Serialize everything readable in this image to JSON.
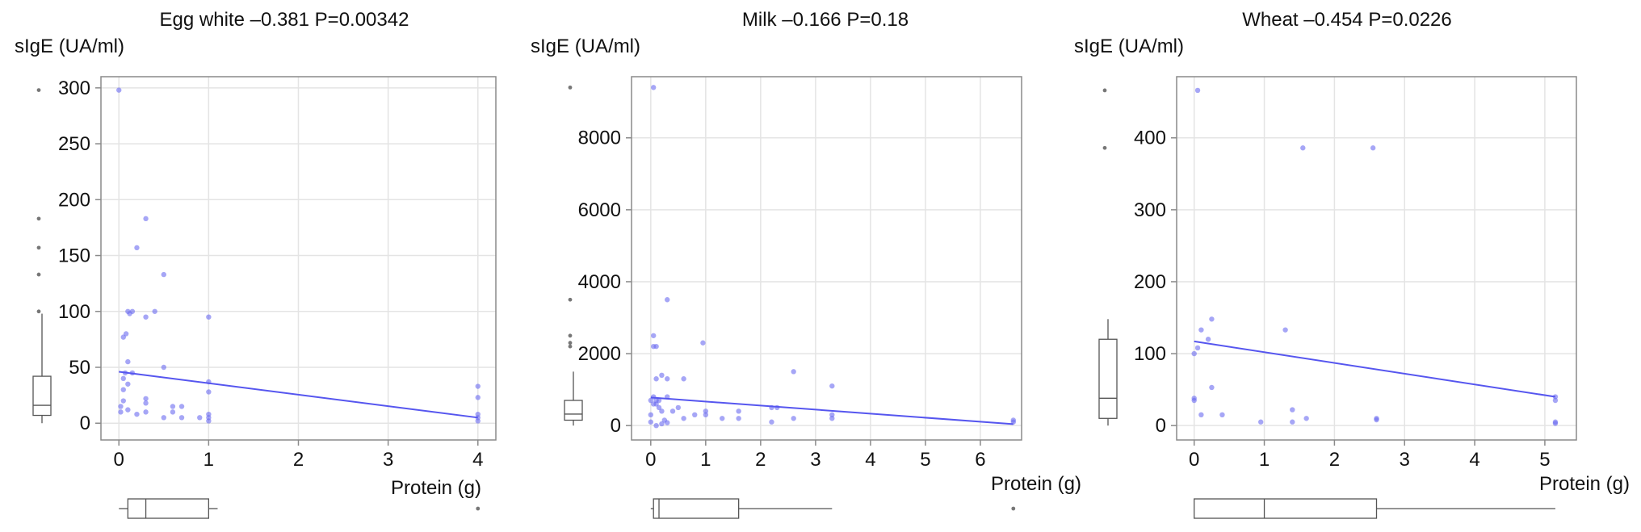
{
  "figure": {
    "colors": {
      "point": "#6b6bf0",
      "line": "#5656ef",
      "grid": "#e4e4e4",
      "frame": "#8a8a8a",
      "boxplot": "#555555"
    }
  },
  "chart_data": [
    {
      "type": "scatter",
      "title": "Egg white –0.381 P=0.00342",
      "ylabel": "sIgE (UA/ml)",
      "xlabel": "Protein (g)",
      "xlim": [
        -0.2,
        4.2
      ],
      "ylim": [
        -15,
        310
      ],
      "xticks": [
        0,
        1,
        2,
        3,
        4
      ],
      "yticks": [
        0,
        50,
        100,
        150,
        200,
        250,
        300
      ],
      "grid": true,
      "x": [
        0.0,
        0.02,
        0.05,
        0.05,
        0.07,
        0.08,
        0.1,
        0.1,
        0.12,
        0.15,
        0.2,
        0.3,
        0.3,
        0.3,
        0.4,
        0.5,
        0.5,
        0.6,
        0.6,
        0.7,
        0.7,
        0.9,
        1.0,
        1.0,
        1.0,
        1.0,
        1.0,
        1.0,
        0.05,
        0.02,
        0.1,
        0.3,
        4.0,
        4.0,
        4.0,
        4.0,
        4.0,
        0.2,
        0.5,
        0.1,
        0.05,
        0.3,
        0.15
      ],
      "y": [
        298,
        10,
        77,
        40,
        45,
        80,
        100,
        55,
        98,
        100,
        157,
        183,
        95,
        10,
        100,
        133,
        50,
        10,
        15,
        5,
        15,
        5,
        95,
        37,
        8,
        2,
        28,
        5,
        20,
        15,
        35,
        22,
        33,
        23,
        8,
        5,
        2,
        8,
        5,
        12,
        30,
        18,
        45
      ],
      "regression": {
        "x": [
          0,
          4
        ],
        "y": [
          46,
          5
        ]
      },
      "y_boxplot": {
        "min": 0,
        "q1": 7,
        "median": 16,
        "q3": 42,
        "max": 98,
        "outliers": [
          298,
          183,
          157,
          133,
          100
        ]
      },
      "x_boxplot": {
        "min": 0.0,
        "q1": 0.1,
        "median": 0.3,
        "q3": 1.0,
        "max": 1.1,
        "outliers": [
          4.0
        ]
      }
    },
    {
      "type": "scatter",
      "title": "Milk –0.166 P=0.18",
      "ylabel": "sIgE (UA/ml)",
      "xlabel": "Protein (g)",
      "xlim": [
        -0.35,
        6.75
      ],
      "ylim": [
        -400,
        9700
      ],
      "xticks": [
        0,
        1,
        2,
        3,
        4,
        5,
        6
      ],
      "yticks": [
        0,
        2000,
        4000,
        6000,
        8000
      ],
      "grid": true,
      "x": [
        0.05,
        0.05,
        0.05,
        0.1,
        0.3,
        0.95,
        0.1,
        0.2,
        0.3,
        0.6,
        0.0,
        0.05,
        0.1,
        0.15,
        0.2,
        0.3,
        0.4,
        0.5,
        0.6,
        0.8,
        1.0,
        1.0,
        1.3,
        1.6,
        1.6,
        2.2,
        2.2,
        2.3,
        2.6,
        2.6,
        3.3,
        3.3,
        3.3,
        6.6,
        6.6,
        0.0,
        0.1,
        0.2,
        0.3,
        0.05,
        0.15,
        0.25,
        0.0,
        0.1
      ],
      "y": [
        9400,
        2500,
        2200,
        2200,
        3500,
        2300,
        1300,
        1400,
        1300,
        1300,
        700,
        800,
        600,
        700,
        400,
        800,
        400,
        500,
        200,
        300,
        300,
        400,
        200,
        400,
        200,
        500,
        100,
        500,
        1500,
        200,
        1100,
        300,
        200,
        150,
        100,
        100,
        0,
        50,
        80,
        600,
        500,
        150,
        300,
        700
      ],
      "regression": {
        "x": [
          0,
          6.6
        ],
        "y": [
          780,
          40
        ]
      },
      "y_boxplot": {
        "min": 0,
        "q1": 150,
        "median": 320,
        "q3": 700,
        "max": 1500,
        "outliers": [
          9400,
          3500,
          2500,
          2300,
          2200
        ]
      },
      "x_boxplot": {
        "min": 0.0,
        "q1": 0.05,
        "median": 0.15,
        "q3": 1.6,
        "max": 3.3,
        "outliers": [
          6.6
        ]
      }
    },
    {
      "type": "scatter",
      "title": "Wheat –0.454 P=0.0226",
      "ylabel": "sIgE (UA/ml)",
      "xlabel": "Protein (g)",
      "xlim": [
        -0.25,
        5.45
      ],
      "ylim": [
        -20,
        485
      ],
      "xticks": [
        0,
        1,
        2,
        3,
        4,
        5
      ],
      "yticks": [
        0,
        100,
        200,
        300,
        400
      ],
      "grid": true,
      "x": [
        0.05,
        1.55,
        2.55,
        0.25,
        0.1,
        0.2,
        0.0,
        0.05,
        0.0,
        0.0,
        0.1,
        0.25,
        0.4,
        1.3,
        1.4,
        1.4,
        1.6,
        2.6,
        2.6,
        0.95,
        5.15,
        5.15,
        5.15,
        5.15
      ],
      "y": [
        466,
        386,
        386,
        148,
        133,
        120,
        100,
        108,
        38,
        35,
        15,
        53,
        15,
        133,
        22,
        5,
        10,
        10,
        8,
        5,
        35,
        40,
        5,
        3
      ],
      "regression": {
        "x": [
          0,
          5.15
        ],
        "y": [
          117,
          40
        ]
      },
      "y_boxplot": {
        "min": 0,
        "q1": 10,
        "median": 38,
        "q3": 120,
        "max": 148,
        "outliers": [
          466,
          386
        ]
      },
      "x_boxplot": {
        "min": 0.0,
        "q1": 0.0,
        "median": 1.0,
        "q3": 2.6,
        "max": 5.15,
        "outliers": []
      }
    }
  ]
}
